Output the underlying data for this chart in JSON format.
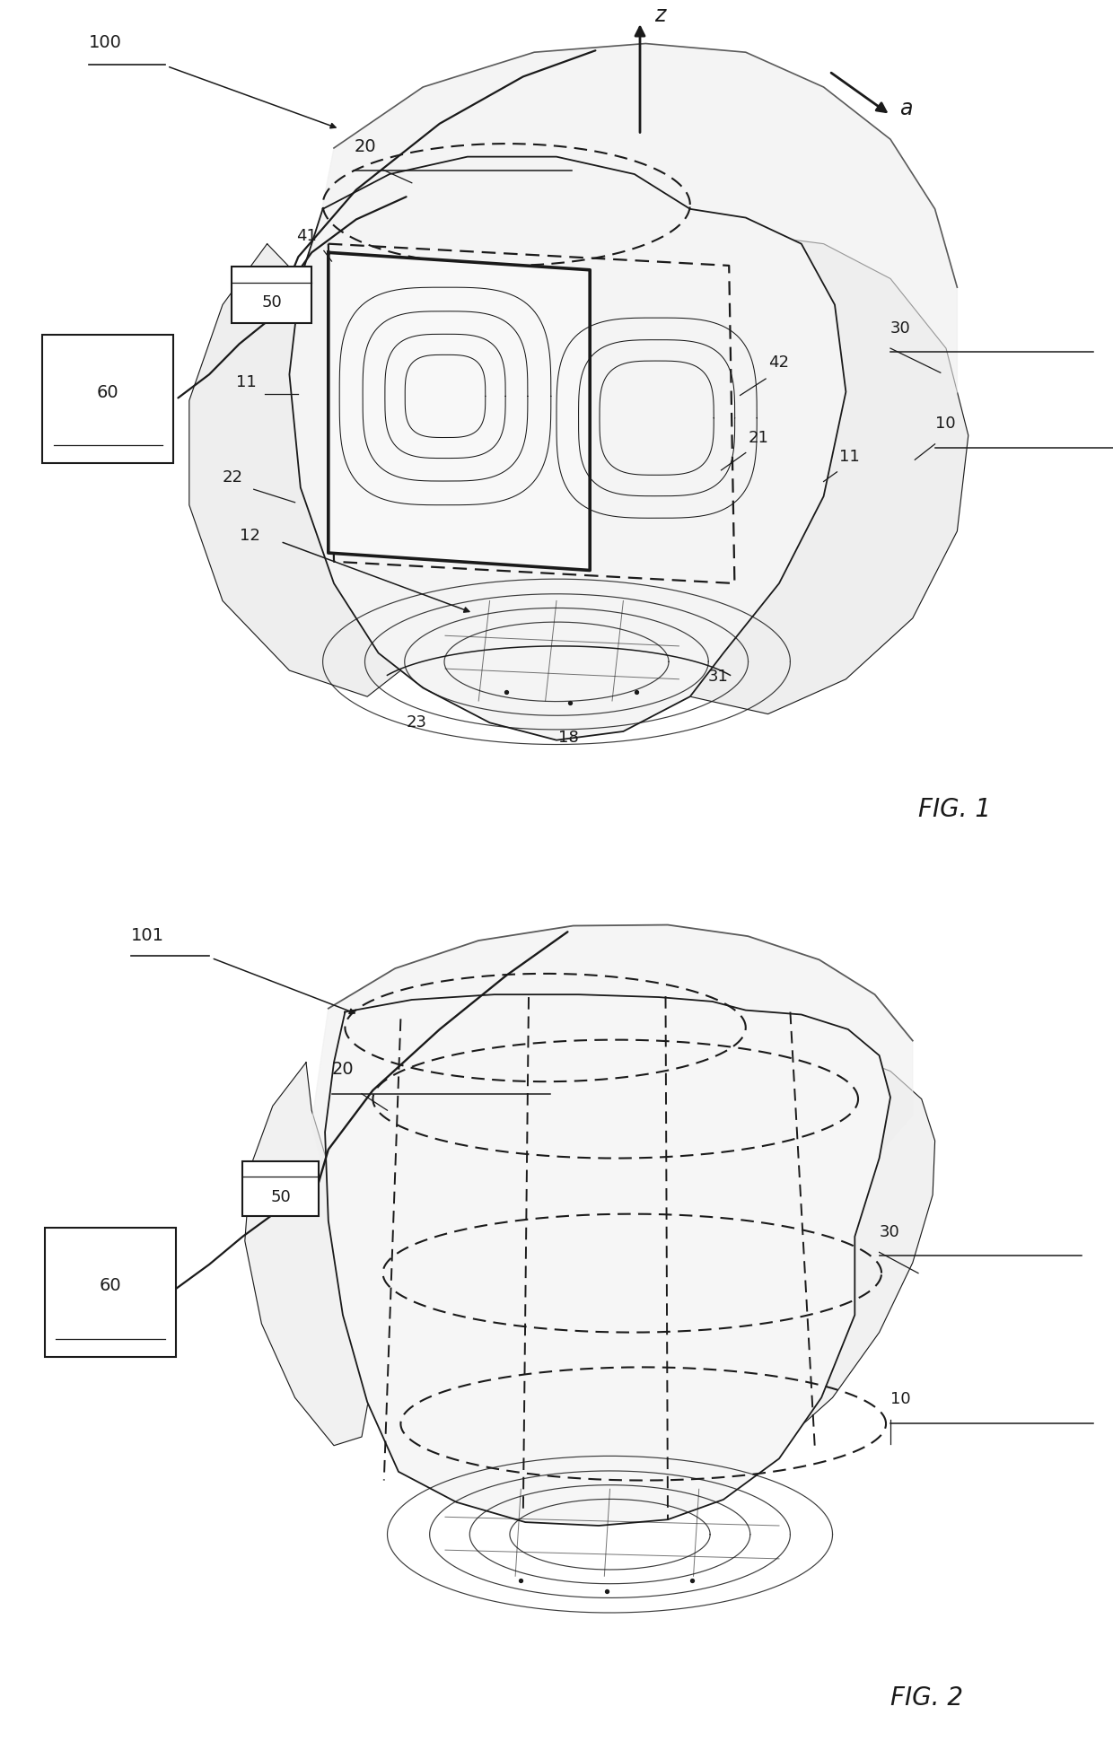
{
  "bg": "#ffffff",
  "lc": "#1a1a1a",
  "gray1": "#d8d8d8",
  "gray2": "#ececec",
  "fig1_label": "FIG. 1",
  "fig2_label": "FIG. 2"
}
